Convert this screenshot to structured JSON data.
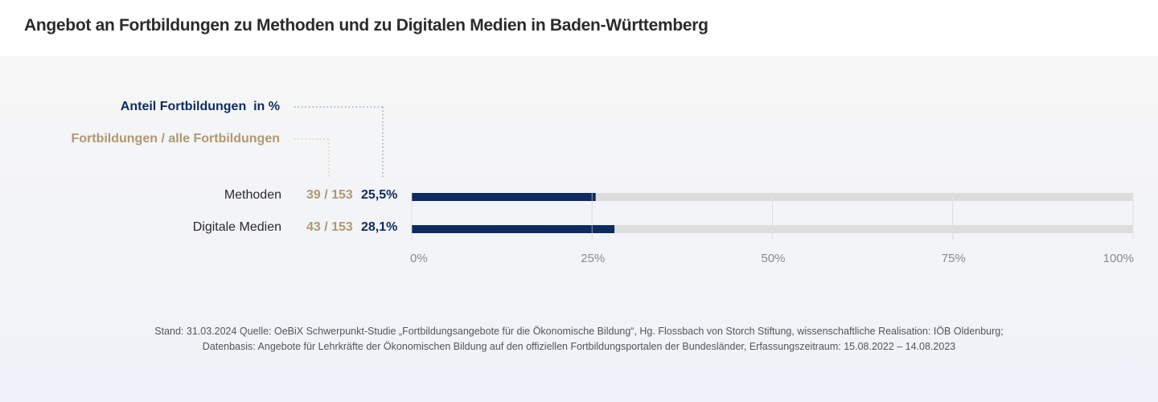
{
  "title": "Angebot an Fortbildungen zu Methoden und zu Digitalen Medien in Baden-Württemberg",
  "legend": {
    "percent_label": "Anteil Fortbildungen  in %",
    "count_label": "Fortbildungen / alle Fortbildungen"
  },
  "colors": {
    "bar": "#0d2b5e",
    "track": "#dcdcdc",
    "count": "#b09872",
    "percent": "#0d2b5e",
    "grid": "#cfcfcf"
  },
  "chart_data": {
    "type": "bar",
    "orientation": "horizontal",
    "title": "Angebot an Fortbildungen zu Methoden und zu Digitalen Medien in Baden-Württemberg",
    "categories": [
      "Methoden",
      "Digitale Medien"
    ],
    "values": [
      25.5,
      28.1
    ],
    "value_labels": [
      "25,5%",
      "28,1%"
    ],
    "counts": [
      "39 / 153",
      "43 / 153"
    ],
    "xlim": [
      0,
      100
    ],
    "xticks": [
      0,
      25,
      50,
      75,
      100
    ],
    "xtick_labels": [
      "0%",
      "25%",
      "50%",
      "75%",
      "100%"
    ],
    "grid": true,
    "legend": [
      "Anteil Fortbildungen  in %",
      "Fortbildungen / alle Fortbildungen"
    ],
    "legend_position": "top-left"
  },
  "footer": {
    "line1": "Stand: 31.03.2024 Quelle: OeBiX Schwerpunkt-Studie „Fortbildungsangebote für die Ökonomische Bildung“, Hg. Flossbach von Storch Stiftung, wissenschaftliche Realisation: IÖB Oldenburg;",
    "line2": "Datenbasis: Angebote für Lehrkräfte der Ökonomischen Bildung auf den offiziellen Fortbildungsportalen der Bundesländer, Erfassungszeitraum: 15.08.2022 – 14.08.2023"
  }
}
